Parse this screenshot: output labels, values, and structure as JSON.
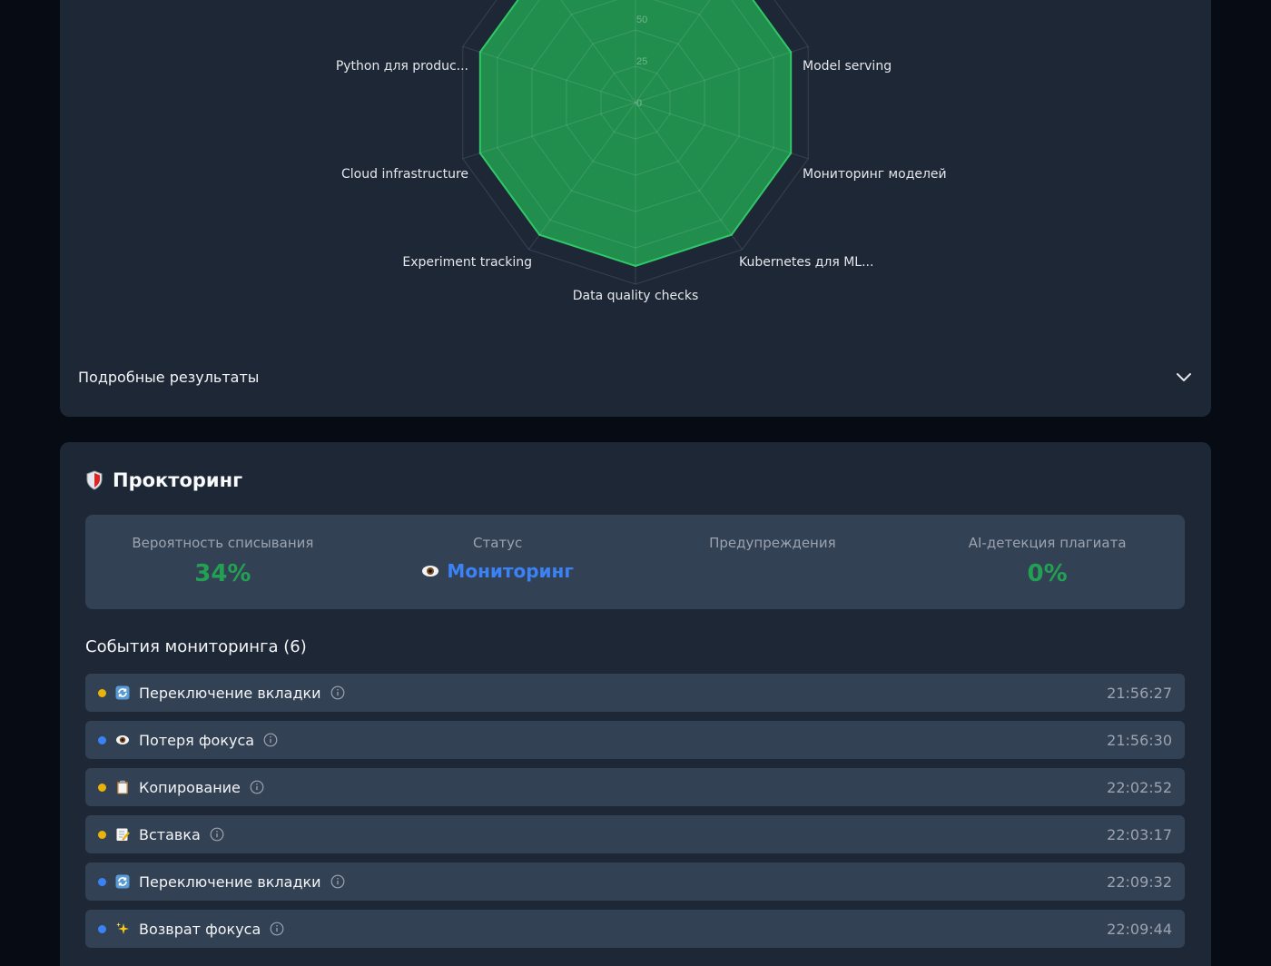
{
  "radar": {
    "ticks": [
      "0",
      "25",
      "50"
    ],
    "axes": [
      "Python для produc...",
      "Model serving",
      "Мониторинг моделей",
      "Kubernetes для ML...",
      "Data quality checks",
      "Experiment tracking",
      "Cloud infrastructure"
    ],
    "fill_color": "#22a152",
    "stroke_color": "#31c767"
  },
  "accordion": {
    "title": "Подробные результаты"
  },
  "proctoring": {
    "title": "Прокторинг",
    "stats": [
      {
        "label": "Вероятность списывания",
        "value": "34%"
      },
      {
        "label": "Статус",
        "value": "Мониторинг"
      },
      {
        "label": "Предупреждения",
        "value": ""
      },
      {
        "label": "AI-детекция плагиата",
        "value": "0%"
      }
    ]
  },
  "events_title": "События мониторинга (6)",
  "events": [
    {
      "label": "Переключение вкладки",
      "time": "21:56:27",
      "dot": "#eab308",
      "icon": "refresh-icon"
    },
    {
      "label": "Потеря фокуса",
      "time": "21:56:30",
      "dot": "#3b82f6",
      "icon": "eye-icon"
    },
    {
      "label": "Копирование",
      "time": "22:02:52",
      "dot": "#eab308",
      "icon": "clipboard-icon"
    },
    {
      "label": "Вставка",
      "time": "22:03:17",
      "dot": "#eab308",
      "icon": "memo-icon"
    },
    {
      "label": "Переключение вкладки",
      "time": "22:09:32",
      "dot": "#3b82f6",
      "icon": "refresh-icon"
    },
    {
      "label": "Возврат фокуса",
      "time": "22:09:44",
      "dot": "#3b82f6",
      "icon": "sparkles-icon"
    }
  ]
}
